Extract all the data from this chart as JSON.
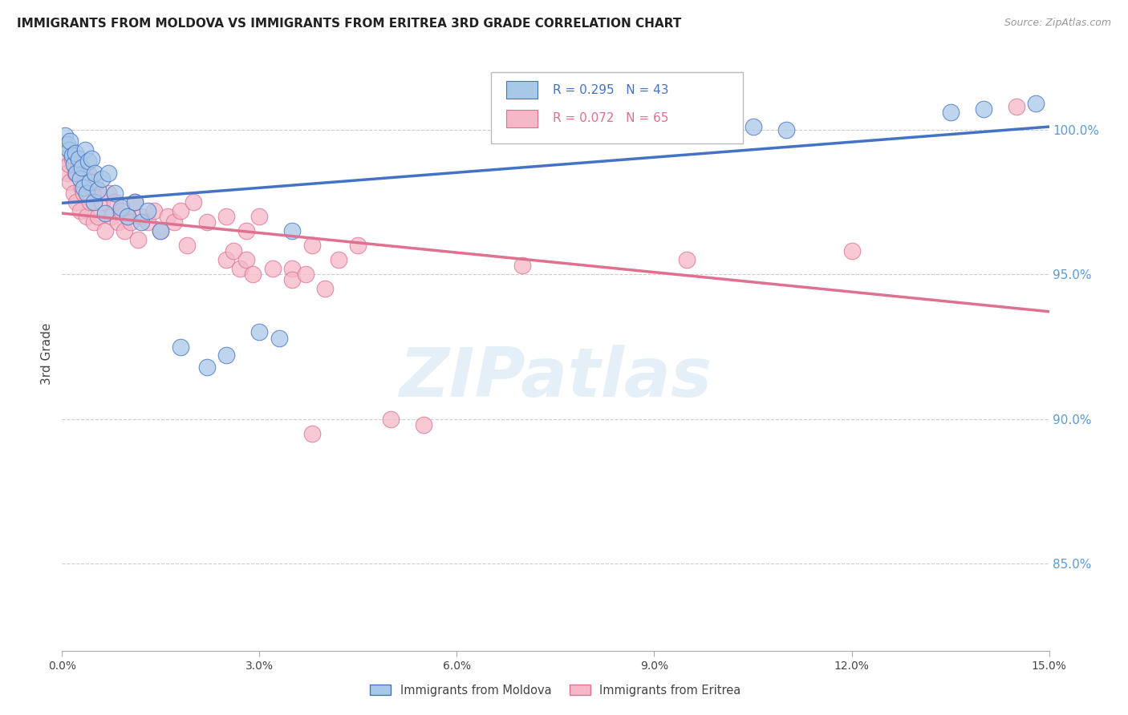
{
  "title": "IMMIGRANTS FROM MOLDOVA VS IMMIGRANTS FROM ERITREA 3RD GRADE CORRELATION CHART",
  "source": "Source: ZipAtlas.com",
  "ylabel": "3rd Grade",
  "ytick_values": [
    85.0,
    90.0,
    95.0,
    100.0
  ],
  "xmin": 0.0,
  "xmax": 15.0,
  "ymin": 82.0,
  "ymax": 102.5,
  "legend_blue_label": "Immigrants from Moldova",
  "legend_pink_label": "Immigrants from Eritrea",
  "R_blue": 0.295,
  "N_blue": 43,
  "R_pink": 0.072,
  "N_pink": 65,
  "blue_scatter_color": "#a8c8e8",
  "blue_edge_color": "#4472c4",
  "pink_scatter_color": "#f4b8c8",
  "pink_edge_color": "#e07090",
  "blue_line_color": "#4472c4",
  "pink_line_color": "#e07090",
  "moldova_x": [
    0.05,
    0.08,
    0.1,
    0.12,
    0.15,
    0.18,
    0.2,
    0.22,
    0.25,
    0.28,
    0.3,
    0.32,
    0.35,
    0.38,
    0.4,
    0.42,
    0.45,
    0.48,
    0.5,
    0.55,
    0.6,
    0.65,
    0.7,
    0.8,
    0.9,
    1.0,
    1.1,
    1.2,
    1.3,
    1.5,
    1.8,
    2.2,
    2.5,
    3.0,
    3.3,
    3.5,
    8.5,
    9.5,
    10.5,
    11.0,
    13.5,
    14.0,
    14.8
  ],
  "moldova_y": [
    99.8,
    99.5,
    99.3,
    99.6,
    99.1,
    98.8,
    99.2,
    98.5,
    99.0,
    98.3,
    98.7,
    98.0,
    99.3,
    97.8,
    98.9,
    98.2,
    99.0,
    97.5,
    98.5,
    97.9,
    98.3,
    97.1,
    98.5,
    97.8,
    97.3,
    97.0,
    97.5,
    96.8,
    97.2,
    96.5,
    92.5,
    91.8,
    92.2,
    93.0,
    92.8,
    96.5,
    100.5,
    100.3,
    100.1,
    100.0,
    100.6,
    100.7,
    100.9
  ],
  "eritrea_x": [
    0.05,
    0.08,
    0.1,
    0.12,
    0.15,
    0.18,
    0.2,
    0.22,
    0.25,
    0.28,
    0.3,
    0.32,
    0.35,
    0.38,
    0.4,
    0.42,
    0.45,
    0.48,
    0.5,
    0.55,
    0.6,
    0.65,
    0.7,
    0.75,
    0.8,
    0.85,
    0.9,
    0.95,
    1.0,
    1.05,
    1.1,
    1.15,
    1.2,
    1.3,
    1.4,
    1.5,
    1.6,
    1.7,
    1.8,
    1.9,
    2.0,
    2.2,
    2.5,
    2.8,
    3.0,
    3.5,
    3.8,
    4.2,
    4.5,
    2.5,
    2.6,
    2.7,
    2.8,
    2.9,
    3.2,
    3.5,
    3.7,
    4.0,
    3.8,
    5.0,
    5.5,
    7.0,
    9.5,
    12.0,
    14.5
  ],
  "eritrea_y": [
    99.0,
    98.5,
    98.8,
    98.2,
    99.0,
    97.8,
    98.5,
    97.5,
    98.8,
    97.2,
    98.0,
    97.8,
    98.3,
    97.0,
    98.5,
    97.5,
    98.0,
    96.8,
    98.2,
    97.0,
    97.5,
    96.5,
    97.8,
    97.0,
    97.5,
    96.8,
    97.2,
    96.5,
    97.0,
    96.8,
    97.5,
    96.2,
    97.0,
    96.8,
    97.2,
    96.5,
    97.0,
    96.8,
    97.2,
    96.0,
    97.5,
    96.8,
    97.0,
    96.5,
    97.0,
    95.2,
    96.0,
    95.5,
    96.0,
    95.5,
    95.8,
    95.2,
    95.5,
    95.0,
    95.2,
    94.8,
    95.0,
    94.5,
    89.5,
    90.0,
    89.8,
    95.3,
    95.5,
    95.8,
    100.8
  ]
}
